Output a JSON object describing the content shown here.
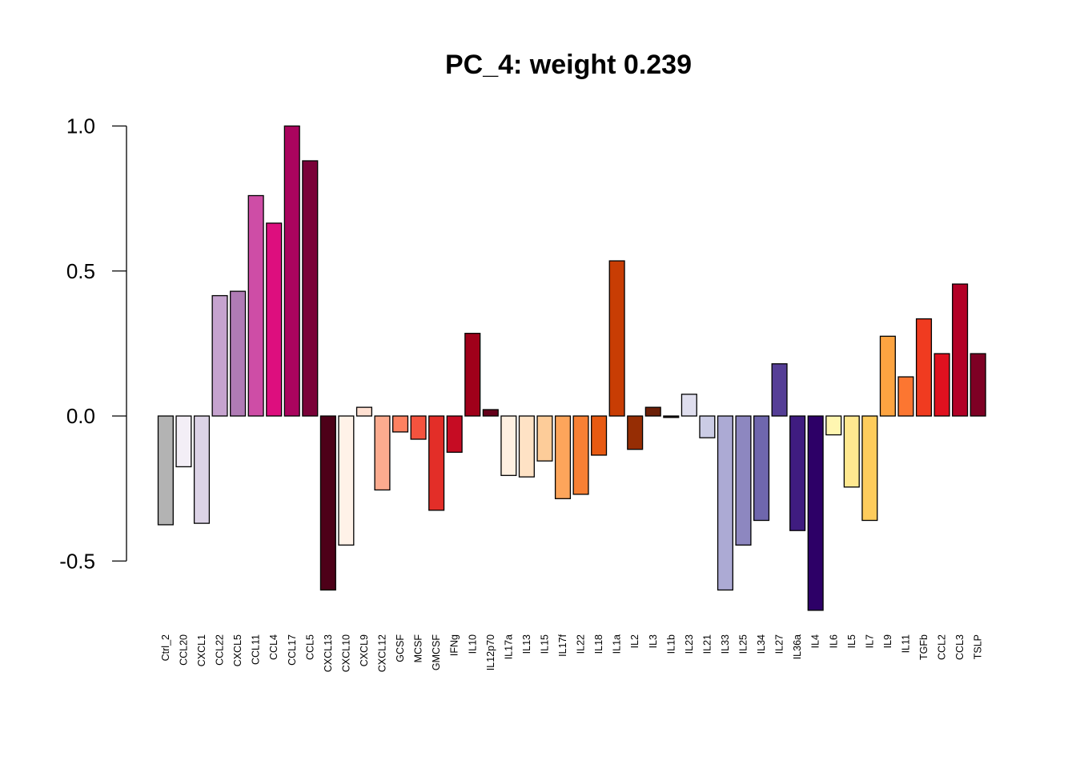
{
  "chart_data": {
    "type": "bar",
    "title": "PC_4: weight 0.239",
    "xlabel": "",
    "ylabel": "",
    "ylim": [
      -0.5,
      1.0
    ],
    "yticks": [
      -0.5,
      0.0,
      0.5,
      1.0
    ],
    "ytick_labels": [
      "-0.5",
      "0.0",
      "0.5",
      "1.0"
    ],
    "grid": false,
    "legend": "none",
    "categories": [
      "Ctrl_2",
      "CCL20",
      "CXCL1",
      "CCL22",
      "CXCL5",
      "CCL11",
      "CCL4",
      "CCL17",
      "CCL5",
      "CXCL13",
      "CXCL10",
      "CXCL9",
      "CXCL12",
      "GCSF",
      "MCSF",
      "GMCSF",
      "IFNg",
      "IL10",
      "IL12p70",
      "IL17a",
      "IL13",
      "IL15",
      "IL17f",
      "IL22",
      "IL18",
      "IL1a",
      "IL2",
      "IL3",
      "IL1b",
      "IL23",
      "IL21",
      "IL33",
      "IL25",
      "IL34",
      "IL27",
      "IL36a",
      "IL4",
      "IL6",
      "IL5",
      "IL7",
      "IL9",
      "IL11",
      "TGFb",
      "CCL2",
      "CCL3",
      "TSLP"
    ],
    "values": [
      -0.375,
      -0.175,
      -0.37,
      0.415,
      0.43,
      0.76,
      0.665,
      1.0,
      0.88,
      -0.6,
      -0.445,
      0.03,
      -0.255,
      -0.055,
      -0.08,
      -0.325,
      -0.125,
      0.285,
      0.022,
      -0.205,
      -0.21,
      -0.155,
      -0.285,
      -0.27,
      -0.135,
      0.535,
      -0.115,
      0.03,
      -0.005,
      0.075,
      -0.075,
      -0.6,
      -0.445,
      -0.36,
      0.18,
      -0.395,
      -0.67,
      -0.065,
      -0.245,
      -0.36,
      0.275,
      0.135,
      0.335,
      0.215,
      0.455,
      0.215
    ],
    "colors": [
      "#B3B3B3",
      "#F3EEF6",
      "#DCD3E6",
      "#C6A3CF",
      "#B07BB5",
      "#CE4DA6",
      "#DD0E7E",
      "#AA045E",
      "#7A0138",
      "#4D0018",
      "#FFF2E8",
      "#FEE0D2",
      "#FCAB8F",
      "#FC8161",
      "#F5533E",
      "#E32E28",
      "#C60C23",
      "#A0001A",
      "#65001A",
      "#FFF0E1",
      "#FEE2C5",
      "#FDCC99",
      "#FDA55B",
      "#F88034",
      "#E75A12",
      "#C83D04",
      "#962D04",
      "#6C2008",
      "#1F0005",
      "#DFDEEE",
      "#CBCCE5",
      "#ACAAD4",
      "#8D87C0",
      "#6F67AD",
      "#553E96",
      "#3F1C80",
      "#2D0067",
      "#FFF6B1",
      "#FFE890",
      "#FECC5C",
      "#FDA441",
      "#FC7631",
      "#F03B20",
      "#E0111F",
      "#B20026",
      "#7E0024"
    ]
  }
}
